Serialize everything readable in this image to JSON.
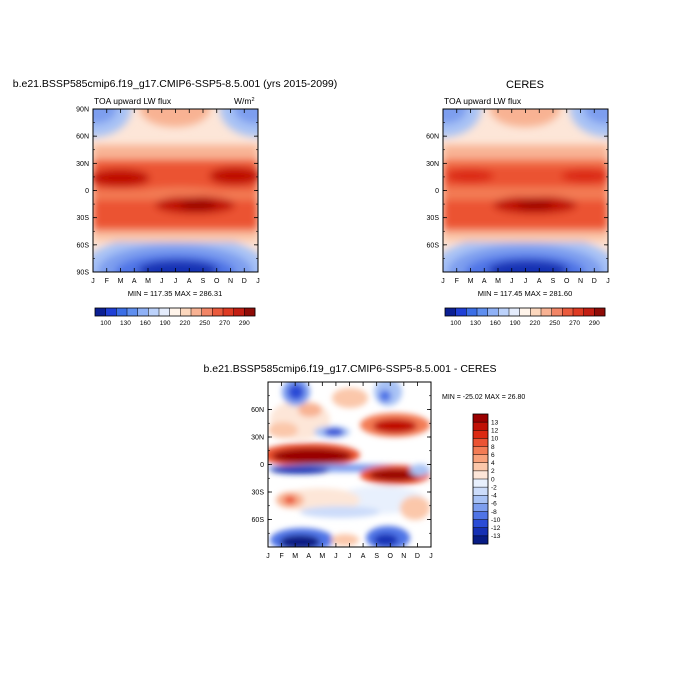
{
  "panels": [
    {
      "title": "b.e21.BSSP585cmip6.f19_g17.CMIP6-SSP5-8.5.001 (yrs 2015-2099)",
      "subtitle_left": "TOA upward LW flux",
      "units_base": "W/m",
      "units_exp": "2",
      "stats": "MIN = 117.35 MAX = 286.31"
    },
    {
      "title": "CERES",
      "subtitle_left": "TOA upward LW flux",
      "stats": "MIN = 117.45 MAX = 281.60"
    },
    {
      "title": "b.e21.BSSP585cmip6.f19_g17.CMIP6-SSP5-8.5.001 - CERES",
      "stats": "MIN = -25.02 MAX =  26.80"
    }
  ],
  "abs_colorbar": {
    "labels": [
      "100",
      "130",
      "160",
      "190",
      "220",
      "250",
      "270",
      "290"
    ],
    "colors": [
      "#0b1f94",
      "#1f3fd6",
      "#3b6ee6",
      "#5f8ff0",
      "#8fb1f6",
      "#bcd2fb",
      "#e4ecfc",
      "#fff4ea",
      "#fcd7bd",
      "#f8b293",
      "#f28566",
      "#ea5a3c",
      "#de3a22",
      "#c21d12",
      "#8f0b06"
    ]
  },
  "diff_colorbar": {
    "labels": [
      "13",
      "12",
      "10",
      "8",
      "6",
      "4",
      "2",
      "0",
      "-2",
      "-4",
      "-6",
      "-8",
      "-10",
      "-12",
      "-13"
    ],
    "colors": [
      "#9a0000",
      "#c01005",
      "#dc2a12",
      "#eb5333",
      "#f37c55",
      "#f8a27c",
      "#fbc7aa",
      "#fde6d8",
      "#e8f0fd",
      "#ccdcfa",
      "#a8c2f5",
      "#7d9eef",
      "#4f74e6",
      "#2a4cd6",
      "#1530b4",
      "#071b84"
    ]
  },
  "chart_data": [
    {
      "type": "heatmap",
      "title": "b.e21.BSSP585cmip6.f19_g17.CMIP6-SSP5-8.5.001 (yrs 2015-2099)",
      "variable": "TOA upward LW flux",
      "units": "W/m2",
      "x": [
        "J",
        "F",
        "M",
        "A",
        "M",
        "J",
        "J",
        "A",
        "S",
        "O",
        "N",
        "D",
        "J"
      ],
      "y_ticks": [
        "90N",
        "60N",
        "30N",
        "0",
        "30S",
        "60S",
        "90S"
      ],
      "ylim": [
        -90,
        90
      ],
      "min": 117.35,
      "max": 286.31,
      "levels": [
        100,
        115,
        130,
        145,
        160,
        175,
        190,
        205,
        220,
        235,
        250,
        260,
        270,
        280,
        290
      ]
    },
    {
      "type": "heatmap",
      "title": "CERES",
      "variable": "TOA upward LW flux",
      "units": "W/m2",
      "x": [
        "J",
        "F",
        "M",
        "A",
        "M",
        "J",
        "J",
        "A",
        "S",
        "O",
        "N",
        "D",
        "J"
      ],
      "y_ticks": [
        "60N",
        "30N",
        "0",
        "30S",
        "60S"
      ],
      "ylim": [
        -90,
        90
      ],
      "min": 117.45,
      "max": 281.6,
      "levels": [
        100,
        115,
        130,
        145,
        160,
        175,
        190,
        205,
        220,
        235,
        250,
        260,
        270,
        280,
        290
      ]
    },
    {
      "type": "heatmap",
      "title": "b.e21.BSSP585cmip6.f19_g17.CMIP6-SSP5-8.5.001 - CERES",
      "x": [
        "J",
        "F",
        "M",
        "A",
        "M",
        "J",
        "J",
        "A",
        "S",
        "O",
        "N",
        "D",
        "J"
      ],
      "y_ticks": [
        "60N",
        "30N",
        "0",
        "30S",
        "60S"
      ],
      "ylim": [
        -90,
        90
      ],
      "min": -25.02,
      "max": 26.8,
      "levels": [
        -13,
        -12,
        -10,
        -8,
        -6,
        -4,
        -2,
        0,
        2,
        4,
        6,
        8,
        10,
        12,
        13
      ]
    }
  ]
}
